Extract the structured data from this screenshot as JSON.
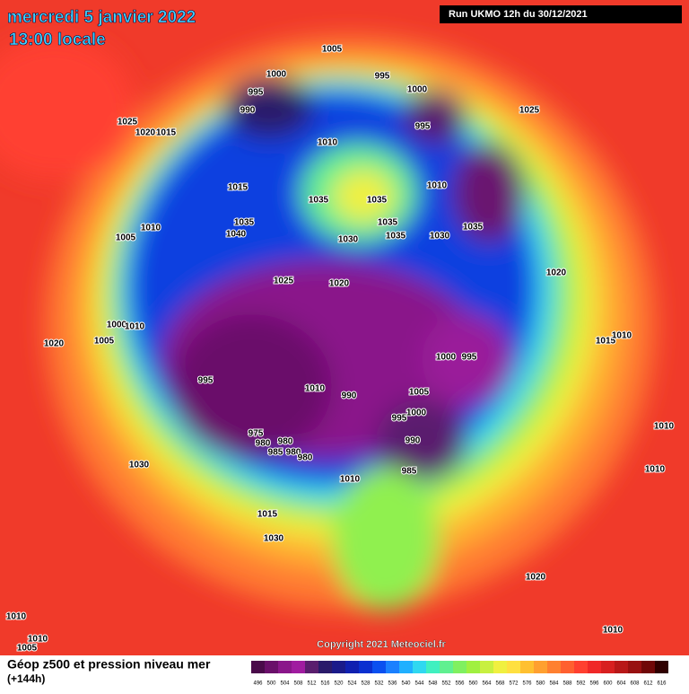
{
  "header": {
    "date": "mercredi 5 janvier 2022",
    "time": "13:00 locale",
    "run": "Run UKMO 12h du 30/12/2021"
  },
  "copyright": "Copyright 2021 Meteociel.fr",
  "legend": {
    "title": "Géop z500 et pression niveau mer",
    "subtitle": "(+144h)",
    "labels": [
      496,
      500,
      504,
      508,
      512,
      516,
      520,
      524,
      528,
      532,
      536,
      540,
      544,
      548,
      552,
      556,
      560,
      564,
      568,
      572,
      576,
      580,
      584,
      588,
      592,
      596,
      600,
      604,
      608,
      612,
      616
    ],
    "colors": [
      "#4a0a4a",
      "#6a0f6a",
      "#8a168a",
      "#a01ca0",
      "#5a1e6e",
      "#2a1a6a",
      "#1a1a8a",
      "#1020b0",
      "#0a30d0",
      "#0a50f0",
      "#1a80ff",
      "#20b0ff",
      "#30d8f0",
      "#40f0c0",
      "#60f090",
      "#80f060",
      "#a0f040",
      "#c8f040",
      "#f0f040",
      "#ffe040",
      "#ffc030",
      "#ffa030",
      "#ff8030",
      "#ff6030",
      "#ff4030",
      "#f02828",
      "#d82020",
      "#b81818",
      "#981010",
      "#700808",
      "#300000"
    ]
  },
  "isobar_labels": [
    1005,
    1000,
    995,
    990,
    995,
    1000,
    995,
    1025,
    1025,
    1020,
    1015,
    1010,
    1010,
    1015,
    1035,
    1035,
    1035,
    1040,
    1035,
    1035,
    1030,
    1030,
    1035,
    1010,
    1005,
    1025,
    1020,
    1020,
    1000,
    1010,
    1020,
    1005,
    1015,
    1010,
    1000,
    995,
    995,
    1010,
    990,
    1005,
    995,
    1000,
    975,
    980,
    980,
    985,
    980,
    980,
    990,
    985,
    1010,
    1010,
    1010,
    1030,
    1015,
    1030,
    1020,
    1010,
    1010,
    1005,
    1010
  ]
}
